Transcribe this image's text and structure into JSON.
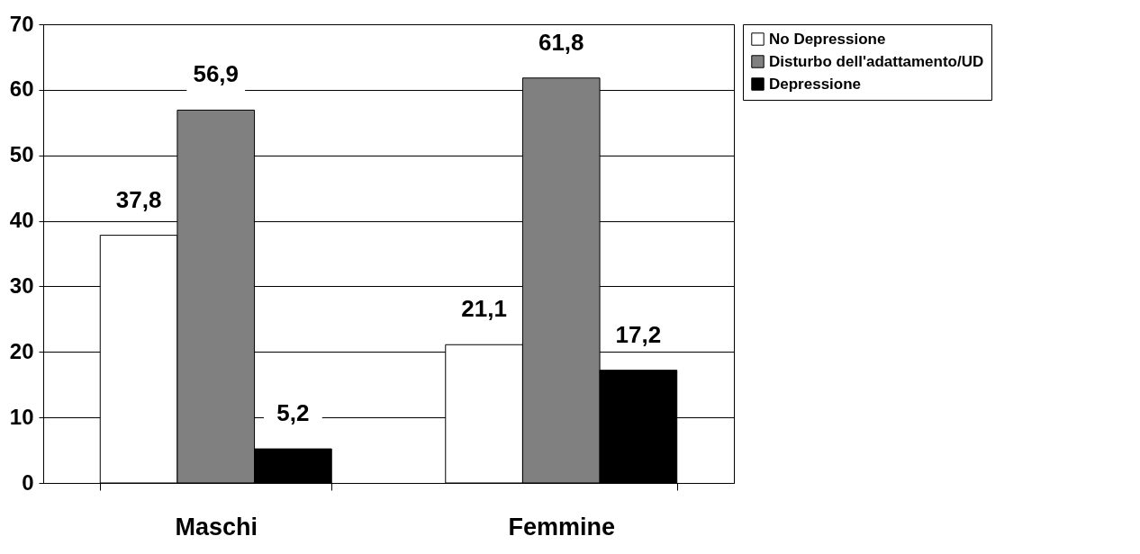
{
  "chart_data": {
    "type": "bar",
    "categories": [
      "Maschi",
      "Femmine"
    ],
    "series": [
      {
        "name": "No Depressione",
        "color": "#ffffff",
        "values": [
          37.8,
          21.1
        ],
        "value_labels": [
          "37,8",
          "21,1"
        ]
      },
      {
        "name": "Disturbo dell'adattamento/UD",
        "color": "#808080",
        "values": [
          56.9,
          61.8
        ],
        "value_labels": [
          "56,9",
          "61,8"
        ]
      },
      {
        "name": "Depressione",
        "color": "#000000",
        "values": [
          5.2,
          17.2
        ],
        "value_labels": [
          "5,2",
          "17,2"
        ]
      }
    ],
    "ylim": [
      0,
      70
    ],
    "yticks": [
      0,
      10,
      20,
      30,
      40,
      50,
      60,
      70
    ],
    "grid": "y",
    "legend": "right"
  }
}
